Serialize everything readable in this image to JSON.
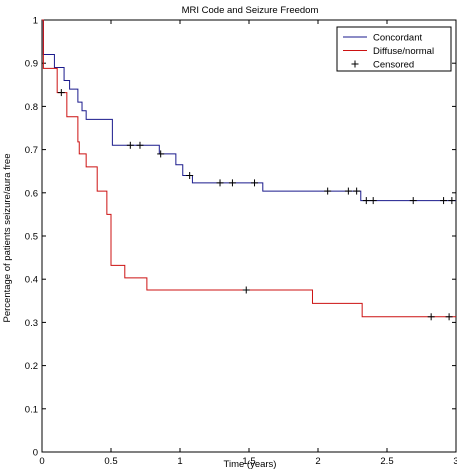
{
  "chart_data": {
    "type": "line",
    "title": "MRI Code and Seizure Freedom",
    "xlabel": "Time (years)",
    "ylabel": "Percentage of patients seizure/aura free",
    "xlim": [
      0,
      3
    ],
    "ylim": [
      0,
      1
    ],
    "x_ticks": [
      0,
      0.5,
      1,
      1.5,
      2,
      2.5,
      3
    ],
    "x_tick_labels": [
      "0",
      "0.5",
      "1",
      "1.5",
      "2",
      "2.5",
      "3"
    ],
    "y_ticks": [
      0,
      0.1,
      0.2,
      0.3,
      0.4,
      0.5,
      0.6,
      0.7,
      0.8,
      0.9,
      1
    ],
    "y_tick_labels": [
      "0",
      "0.1",
      "0.2",
      "0.3",
      "0.4",
      "0.5",
      "0.6",
      "0.7",
      "0.8",
      "0.9",
      "1"
    ],
    "grid": false,
    "legend_position": "top-right",
    "series": [
      {
        "name": "Concordant",
        "color": "#1a1a8c",
        "steps": [
          [
            0,
            1
          ],
          [
            0.01,
            0.92
          ],
          [
            0.09,
            0.89
          ],
          [
            0.16,
            0.86
          ],
          [
            0.2,
            0.84
          ],
          [
            0.26,
            0.81
          ],
          [
            0.29,
            0.79
          ],
          [
            0.32,
            0.77
          ],
          [
            0.51,
            0.71
          ],
          [
            0.85,
            0.69
          ],
          [
            0.97,
            0.665
          ],
          [
            1.02,
            0.64
          ],
          [
            1.09,
            0.623
          ],
          [
            1.6,
            0.604
          ],
          [
            2.31,
            0.582
          ],
          [
            3,
            0.582
          ]
        ],
        "censored": [
          [
            0.64,
            0.71
          ],
          [
            0.71,
            0.71
          ],
          [
            0.86,
            0.69
          ],
          [
            1.07,
            0.64
          ],
          [
            1.29,
            0.623
          ],
          [
            1.38,
            0.623
          ],
          [
            1.54,
            0.623
          ],
          [
            2.07,
            0.604
          ],
          [
            2.22,
            0.604
          ],
          [
            2.28,
            0.604
          ],
          [
            2.35,
            0.582
          ],
          [
            2.4,
            0.582
          ],
          [
            2.69,
            0.582
          ],
          [
            2.91,
            0.582
          ],
          [
            2.97,
            0.582
          ]
        ]
      },
      {
        "name": "Diffuse/normal",
        "color": "#cc1111",
        "steps": [
          [
            0,
            1
          ],
          [
            0.01,
            0.888
          ],
          [
            0.11,
            0.832
          ],
          [
            0.18,
            0.776
          ],
          [
            0.26,
            0.718
          ],
          [
            0.27,
            0.69
          ],
          [
            0.32,
            0.66
          ],
          [
            0.4,
            0.604
          ],
          [
            0.47,
            0.55
          ],
          [
            0.5,
            0.432
          ],
          [
            0.6,
            0.403
          ],
          [
            0.76,
            0.375
          ],
          [
            1.96,
            0.344
          ],
          [
            2.32,
            0.313
          ],
          [
            3,
            0.313
          ]
        ],
        "censored": [
          [
            0.14,
            0.832
          ],
          [
            1.48,
            0.375
          ],
          [
            2.82,
            0.313
          ],
          [
            2.95,
            0.313
          ]
        ]
      }
    ],
    "legend": {
      "entries": [
        "Concordant",
        "Diffuse/normal",
        "Censored"
      ],
      "censored_marker": "+"
    }
  }
}
